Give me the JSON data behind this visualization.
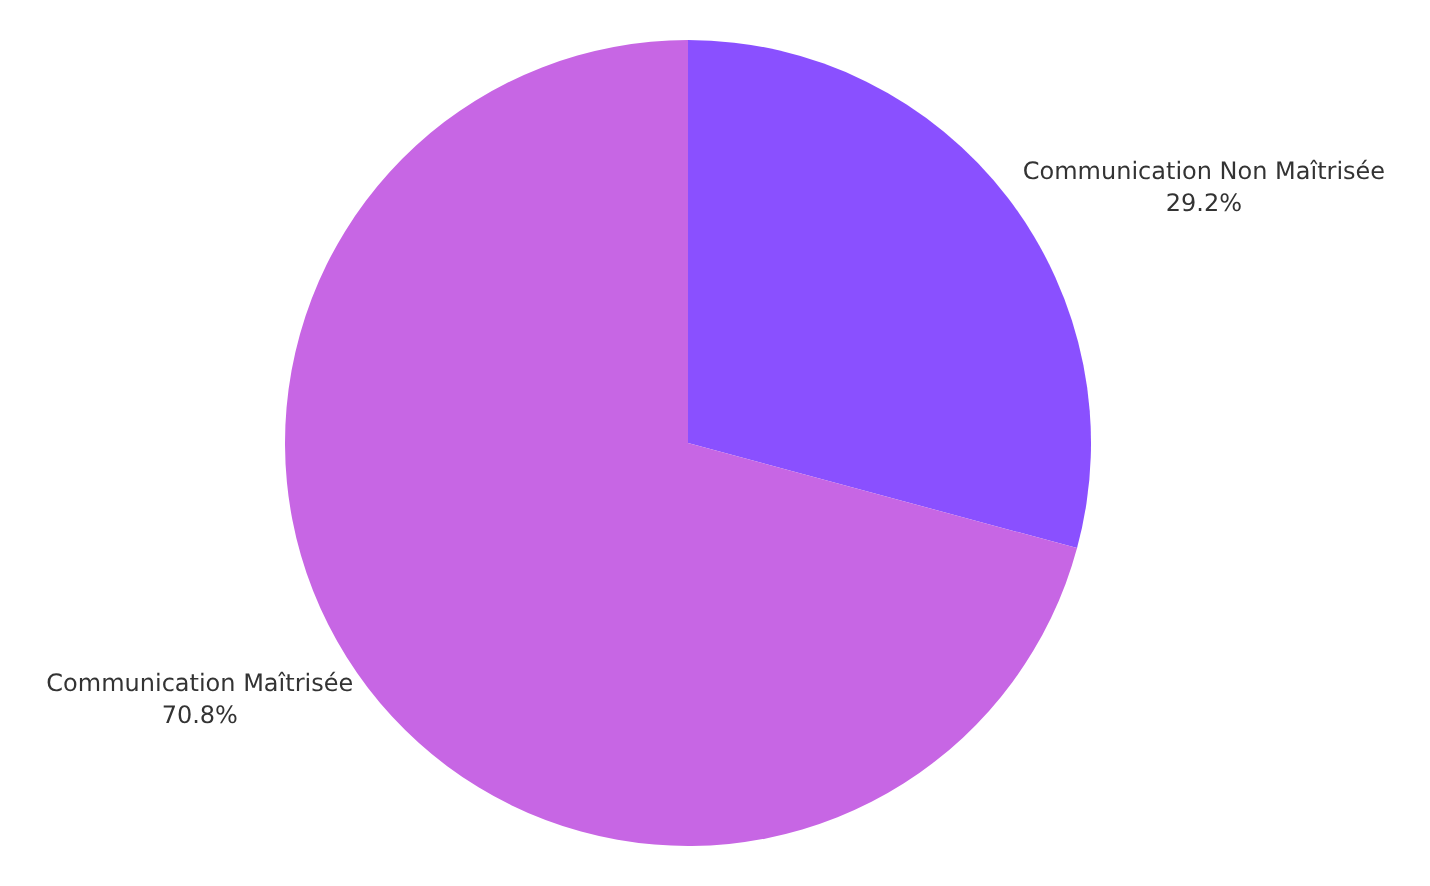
{
  "chart_data": {
    "type": "pie",
    "categories": [
      "Communication Non Maîtrisée",
      "Communication Maîtrisée"
    ],
    "values": [
      29.2,
      70.8
    ],
    "value_labels": [
      "29.2%",
      "70.8%"
    ],
    "colors": [
      "#8a50ff",
      "#c766e4"
    ],
    "legend": false
  }
}
